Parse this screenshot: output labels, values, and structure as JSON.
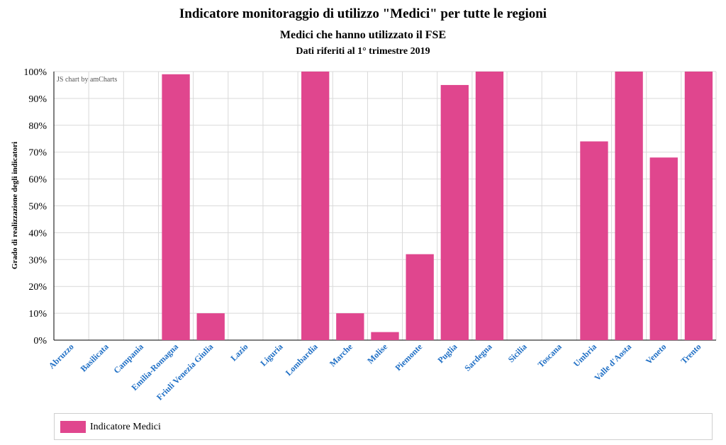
{
  "titles": {
    "main": "Indicatore monitoraggio di utilizzo \"Medici\" per tutte le regioni",
    "sub": "Medici che hanno utilizzato il FSE",
    "period": "Dati riferiti al 1° trimestre 2019"
  },
  "credit": "JS chart by amCharts",
  "colors": {
    "bar": "#e0468e",
    "category_label": "#1f6fc5",
    "grid": "#d9d9d9"
  },
  "chart_data": {
    "type": "bar",
    "title": "Indicatore monitoraggio di utilizzo \"Medici\" per tutte le regioni",
    "ylabel": "Grado di realizzazione degli indicatori",
    "xlabel": "",
    "ylim": [
      0,
      100
    ],
    "yticks": [
      "0%",
      "10%",
      "20%",
      "30%",
      "40%",
      "50%",
      "60%",
      "70%",
      "80%",
      "90%",
      "100%"
    ],
    "grid": true,
    "legend_placement": "bottom",
    "categories": [
      "Abruzzo",
      "Basilicata",
      "Campania",
      "Emilia-Romagna",
      "Friuli Venezia Giulia",
      "Lazio",
      "Liguria",
      "Lombardia",
      "Marche",
      "Molise",
      "Piemonte",
      "Puglia",
      "Sardegna",
      "Sicilia",
      "Toscana",
      "Umbria",
      "Valle d'Aosta",
      "Veneto",
      "Trento"
    ],
    "series": [
      {
        "name": "Indicatore Medici",
        "values": [
          0,
          0,
          0,
          99,
          10,
          0,
          0,
          100,
          10,
          3,
          32,
          95,
          100,
          0,
          0,
          74,
          100,
          68,
          100
        ]
      }
    ]
  }
}
